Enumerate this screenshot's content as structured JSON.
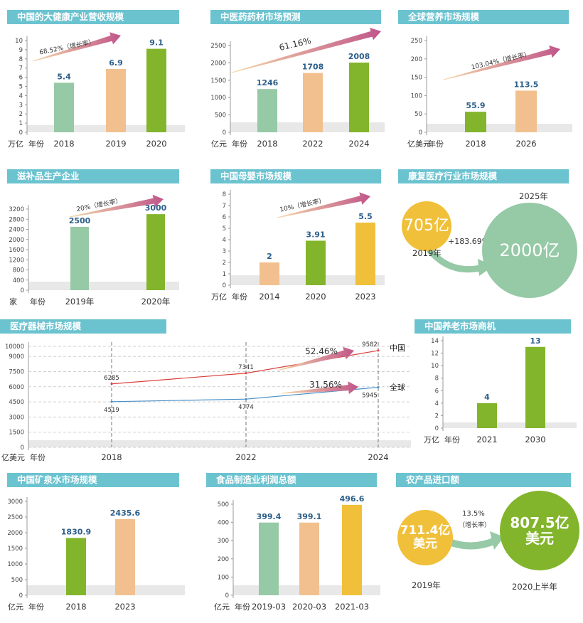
{
  "colors": {
    "green_light": "#96c9a6",
    "orange_light": "#f2c08e",
    "green_dark": "#82b52b",
    "yellow": "#f0c03a",
    "red_line": "#d9413d",
    "blue_line": "#4a8fc6",
    "title_bg": "#6cc3d0",
    "gray_band": "#e8e8e8"
  },
  "chart_data": [
    {
      "id": "health",
      "type": "bar",
      "title": "中国的大健康产业营收规模",
      "unit": "万亿",
      "year_label": "年份",
      "categories": [
        "2018",
        "2019",
        "2020"
      ],
      "values": [
        5.4,
        6.9,
        9.1
      ],
      "value_labels": [
        "5.4",
        "6.9",
        "9.1"
      ],
      "ylim": [
        0,
        10
      ],
      "yticks": [
        0,
        1,
        2,
        3,
        4,
        5,
        6,
        7,
        8,
        9,
        10
      ],
      "bar_colors": [
        "#96c9a6",
        "#f2c08e",
        "#82b52b"
      ],
      "growth": "68.52%（增长率）"
    },
    {
      "id": "tcm",
      "type": "bar",
      "title": "中医药药材市场预测",
      "unit": "亿元",
      "year_label": "年份",
      "categories": [
        "2018",
        "2022",
        "2024"
      ],
      "values": [
        1246,
        1708,
        2008
      ],
      "value_labels": [
        "1246",
        "1708",
        "2008"
      ],
      "ylim": [
        0,
        2500
      ],
      "yticks": [
        0,
        500,
        1000,
        1500,
        2000,
        2500
      ],
      "bar_colors": [
        "#96c9a6",
        "#f2c08e",
        "#82b52b"
      ],
      "growth": "61.16%"
    },
    {
      "id": "nutrition",
      "type": "bar",
      "title": "全球营养市场规模",
      "unit": "亿美元",
      "year_label": "年份",
      "categories": [
        "2018",
        "2026"
      ],
      "values": [
        55.9,
        113.5
      ],
      "value_labels": [
        "55.9",
        "113.5"
      ],
      "ylim": [
        0,
        250
      ],
      "yticks": [
        0,
        50,
        100,
        150,
        200,
        250
      ],
      "bar_colors": [
        "#82b52b",
        "#f2c08e"
      ],
      "growth": "103.04%（增长率）"
    },
    {
      "id": "tonic",
      "type": "bar",
      "title": "滋补品生产企业",
      "unit": "家",
      "year_label": "年份",
      "categories": [
        "2019年",
        "2020年"
      ],
      "values": [
        2500,
        3000
      ],
      "value_labels": [
        "2500",
        "3000"
      ],
      "ylim": [
        0,
        3200
      ],
      "yticks": [
        0,
        400,
        800,
        1200,
        1600,
        2000,
        2400,
        2800,
        3200
      ],
      "bar_colors": [
        "#96c9a6",
        "#82b52b"
      ],
      "growth": "20%（增长率）"
    },
    {
      "id": "maternal",
      "type": "bar",
      "title": "中国母婴市场规模",
      "unit": "万亿",
      "year_label": "年份",
      "categories": [
        "2014",
        "2020",
        "2023"
      ],
      "values": [
        2,
        3.91,
        5.5
      ],
      "value_labels": [
        "2",
        "3.91",
        "5.5"
      ],
      "ylim": [
        0,
        8
      ],
      "yticks": [
        0,
        1,
        2,
        3,
        4,
        5,
        6,
        7,
        8
      ],
      "bar_colors": [
        "#f2c08e",
        "#82b52b",
        "#f0c03a"
      ],
      "growth": "10%（增长率）"
    },
    {
      "id": "rehab",
      "type": "bubble",
      "title": "康复医疗行业市场规模",
      "items": [
        {
          "label": "2019年",
          "value": "705亿"
        },
        {
          "label": "2025年",
          "value": "2000亿"
        }
      ],
      "growth": "+183.69%"
    },
    {
      "id": "device",
      "type": "line",
      "title": "医疗器械市场规模",
      "unit": "亿美元",
      "year_label": "年份",
      "x": [
        "2018",
        "2022",
        "2024"
      ],
      "ylim": [
        0,
        10000
      ],
      "yticks": [
        0,
        1500,
        3000,
        4500,
        6000,
        7500,
        9000,
        10000
      ],
      "series": [
        {
          "name": "中国",
          "values": [
            6285,
            7341,
            9582
          ],
          "color": "#d9413d"
        },
        {
          "name": "全球",
          "values": [
            4519,
            4774,
            5945
          ],
          "color": "#4a8fc6"
        }
      ],
      "growth": [
        "52.46%",
        "31.56%"
      ]
    },
    {
      "id": "elderly",
      "type": "bar",
      "title": "中国养老市场商机",
      "unit": "万亿",
      "year_label": "年份",
      "categories": [
        "2021",
        "2030"
      ],
      "values": [
        4,
        13
      ],
      "value_labels": [
        "4",
        "13"
      ],
      "ylim": [
        0,
        14
      ],
      "yticks": [
        0,
        2,
        4,
        6,
        8,
        10,
        12,
        14
      ],
      "bar_colors": [
        "#82b52b",
        "#82b52b"
      ],
      "growth": ""
    },
    {
      "id": "water",
      "type": "bar",
      "title": "中国矿泉水市场规模",
      "unit": "亿元",
      "year_label": "年份",
      "categories": [
        "2018",
        "2023"
      ],
      "values": [
        1830.9,
        2435.6
      ],
      "value_labels": [
        "1830.9",
        "2435.6"
      ],
      "ylim": [
        0,
        3000
      ],
      "yticks": [
        0,
        500,
        1000,
        1500,
        2000,
        2500,
        3000
      ],
      "bar_colors": [
        "#82b52b",
        "#f2c08e"
      ],
      "growth": ""
    },
    {
      "id": "food",
      "type": "bar",
      "title": "食品制造业利润总额",
      "unit": "亿元",
      "year_label": "年份",
      "categories": [
        "2019-03",
        "2020-03",
        "2021-03"
      ],
      "values": [
        399.4,
        399.1,
        496.6
      ],
      "value_labels": [
        "399.4",
        "399.1",
        "496.6"
      ],
      "ylim": [
        0,
        500
      ],
      "yticks": [
        0,
        100,
        200,
        300,
        400,
        500
      ],
      "bar_colors": [
        "#96c9a6",
        "#f2c08e",
        "#f0c03a"
      ],
      "growth": ""
    },
    {
      "id": "agri",
      "type": "bubble",
      "title": "农产品进口额",
      "items": [
        {
          "label": "2019年",
          "value": "711.4亿美元",
          "line1": "711.4亿",
          "line2": "美元"
        },
        {
          "label": "2020上半年",
          "value": "807.5亿美元",
          "line1": "807.5亿",
          "line2": "美元"
        }
      ],
      "growth": "13.5%",
      "growth_note": "（增长率）"
    }
  ]
}
